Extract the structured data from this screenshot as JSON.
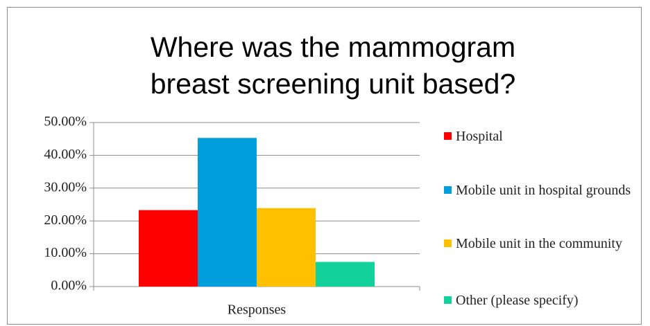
{
  "chart_data": {
    "type": "bar",
    "title": "Where was the mammogram breast screening unit based?",
    "categories": [
      "Responses"
    ],
    "series": [
      {
        "name": "Hospital",
        "color": "#ff0000",
        "values": [
          23.3
        ]
      },
      {
        "name": "Mobile unit in hospital grounds",
        "color": "#009fdb",
        "values": [
          45.3
        ]
      },
      {
        "name": "Mobile unit in the community",
        "color": "#ffc000",
        "values": [
          23.9
        ]
      },
      {
        "name": "Other (please specify)",
        "color": "#12d19b",
        "values": [
          7.5
        ]
      }
    ],
    "ylim": [
      0,
      50
    ],
    "yticks": [
      {
        "value": 0,
        "label": "0.00%"
      },
      {
        "value": 10,
        "label": "10.00%"
      },
      {
        "value": 20,
        "label": "20.00%"
      },
      {
        "value": 30,
        "label": "30.00%"
      },
      {
        "value": 40,
        "label": "40.00%"
      },
      {
        "value": 50,
        "label": "50.00%"
      }
    ],
    "grid": true,
    "legend": "right"
  }
}
